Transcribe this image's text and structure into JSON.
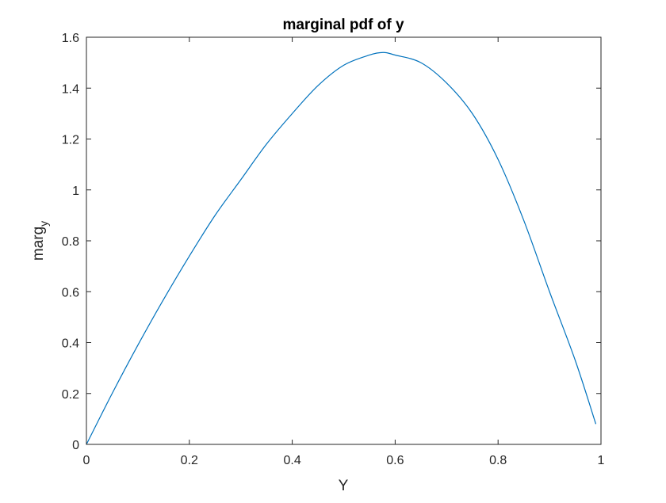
{
  "chart_data": {
    "type": "line",
    "title": "marginal pdf of y",
    "xlabel": "Y",
    "ylabel": {
      "main": "marg",
      "subscript": "y"
    },
    "xlim": [
      0,
      1
    ],
    "ylim": [
      0,
      1.6
    ],
    "xticks": [
      0,
      0.2,
      0.4,
      0.6,
      0.8,
      1
    ],
    "xtick_labels": [
      "0",
      "0.2",
      "0.4",
      "0.6",
      "0.8",
      "1"
    ],
    "yticks": [
      0,
      0.2,
      0.4,
      0.6,
      0.8,
      1,
      1.2,
      1.4,
      1.6
    ],
    "ytick_labels": [
      "0",
      "0.2",
      "0.4",
      "0.6",
      "0.8",
      "1",
      "1.2",
      "1.4",
      "1.6"
    ],
    "grid": false,
    "series": [
      {
        "color": "#0072BD",
        "x": [
          0,
          0.05,
          0.1,
          0.15,
          0.2,
          0.25,
          0.3,
          0.35,
          0.4,
          0.45,
          0.5,
          0.55,
          0.577,
          0.6,
          0.65,
          0.7,
          0.75,
          0.8,
          0.85,
          0.9,
          0.95,
          0.99
        ],
        "y": [
          0,
          0.2,
          0.39,
          0.57,
          0.74,
          0.9,
          1.04,
          1.18,
          1.3,
          1.41,
          1.49,
          1.53,
          1.54,
          1.53,
          1.5,
          1.42,
          1.3,
          1.12,
          0.88,
          0.6,
          0.33,
          0.08
        ]
      }
    ]
  }
}
